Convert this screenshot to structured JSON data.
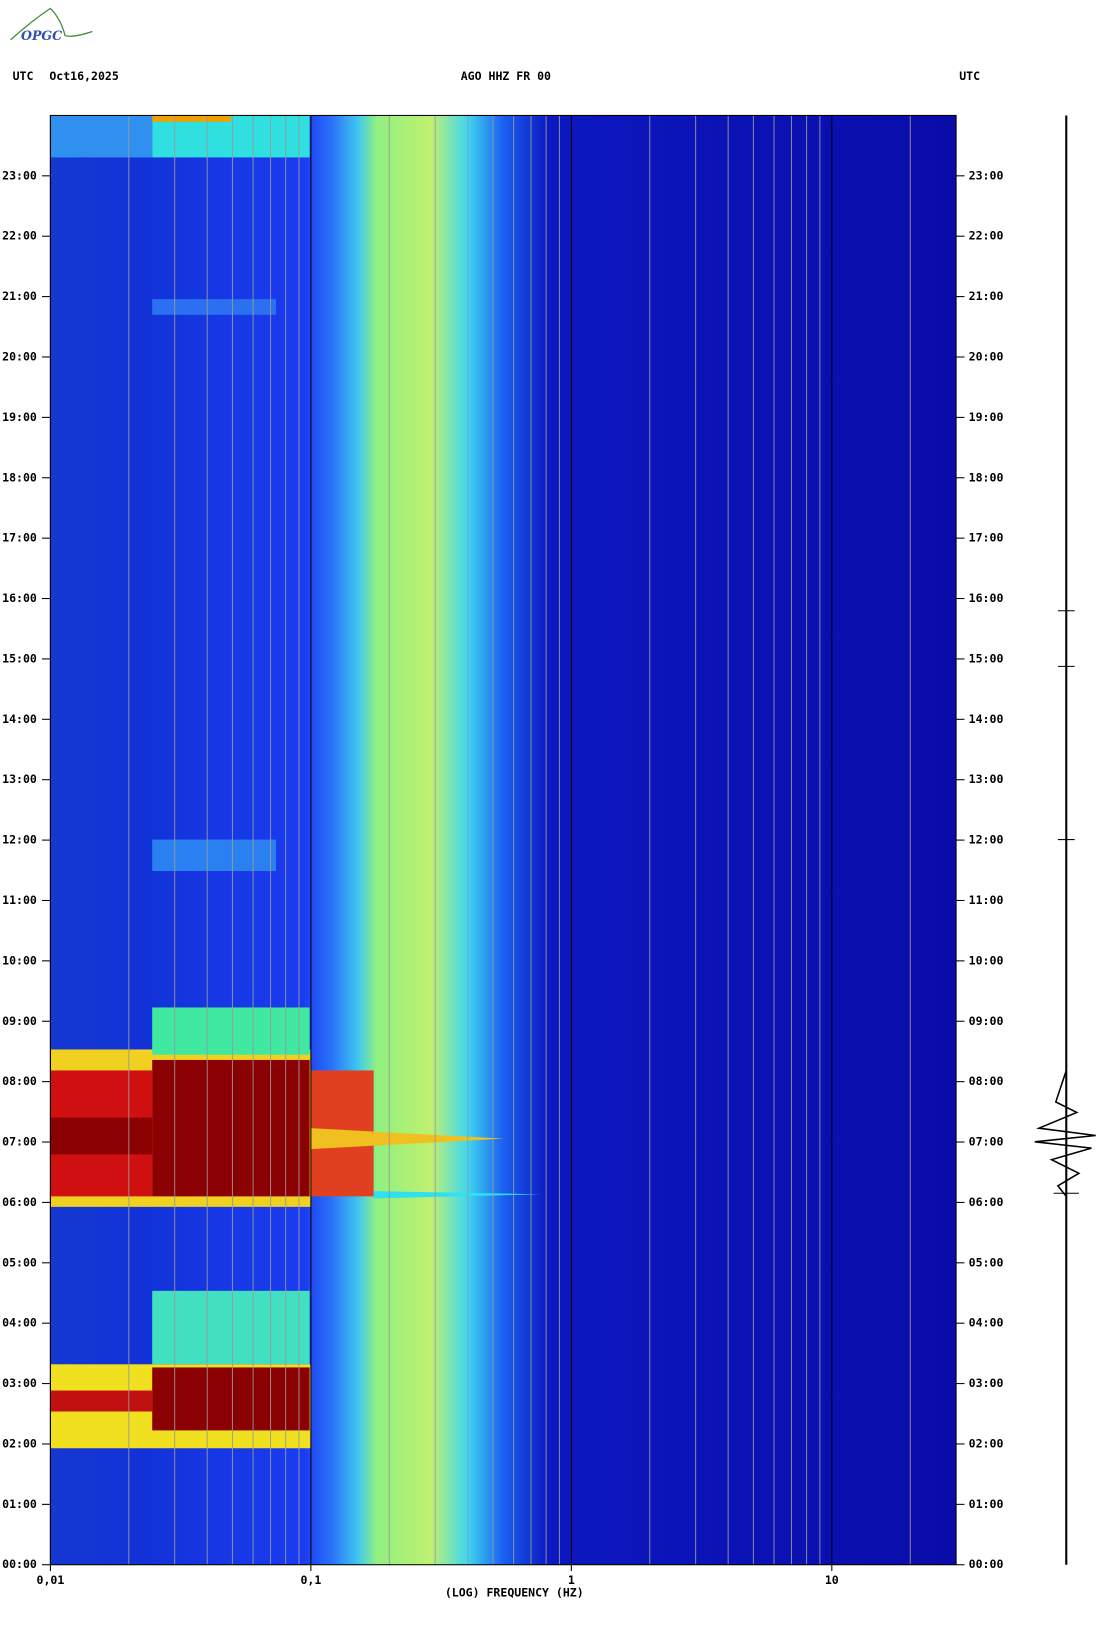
{
  "chart_data": {
    "type": "spectrogram",
    "logo": "OPGC",
    "title": "AGO HHZ FR 00",
    "left_label": "UTC",
    "date": "Oct16,2025",
    "right_label": "UTC",
    "xlabel": "(LOG) FREQUENCY (HZ)",
    "xscale": "log",
    "xlim": [
      0.01,
      30
    ],
    "xticks": [
      {
        "value": 0.01,
        "label": "0,01"
      },
      {
        "value": 0.1,
        "label": "0,1"
      },
      1,
      10
    ],
    "xgrid": [
      0.02,
      0.03,
      0.04,
      0.05,
      0.06,
      0.07,
      0.08,
      0.09,
      0.2,
      0.3,
      0.4,
      0.5,
      0.6,
      0.7,
      0.8,
      0.9,
      2,
      3,
      4,
      5,
      6,
      7,
      8,
      9,
      20
    ],
    "ylim": [
      0,
      24
    ],
    "yticks": [
      {
        "value": 0,
        "label": "00:00"
      },
      {
        "value": 1,
        "label": "01:00"
      },
      {
        "value": 2,
        "label": "02:00"
      },
      {
        "value": 3,
        "label": "03:00"
      },
      {
        "value": 4,
        "label": "04:00"
      },
      {
        "value": 5,
        "label": "05:00"
      },
      {
        "value": 6,
        "label": "06:00"
      },
      {
        "value": 7,
        "label": "07:00"
      },
      {
        "value": 8,
        "label": "08:00"
      },
      {
        "value": 9,
        "label": "09:00"
      },
      {
        "value": 10,
        "label": "10:00"
      },
      {
        "value": 11,
        "label": "11:00"
      },
      {
        "value": 12,
        "label": "12:00"
      },
      {
        "value": 13,
        "label": "13:00"
      },
      {
        "value": 14,
        "label": "14:00"
      },
      {
        "value": 15,
        "label": "15:00"
      },
      {
        "value": 16,
        "label": "16:00"
      },
      {
        "value": 17,
        "label": "17:00"
      },
      {
        "value": 18,
        "label": "18:00"
      },
      {
        "value": 19,
        "label": "19:00"
      },
      {
        "value": 20,
        "label": "20:00"
      },
      {
        "value": 21,
        "label": "21:00"
      },
      {
        "value": 22,
        "label": "22:00"
      },
      {
        "value": 23,
        "label": "23:00"
      }
    ]
  }
}
